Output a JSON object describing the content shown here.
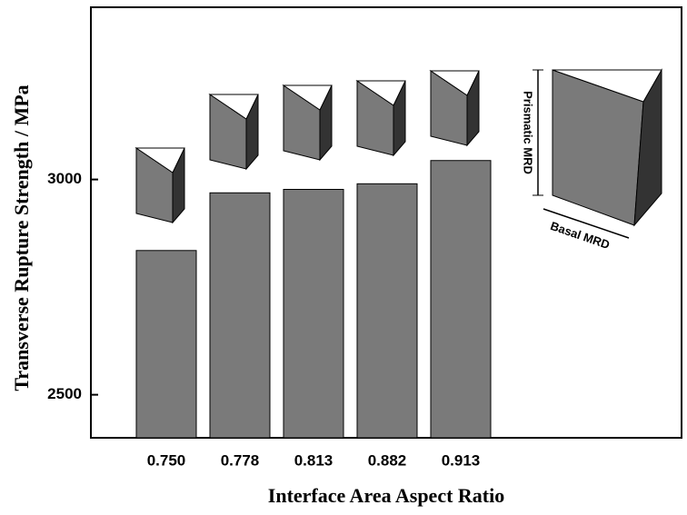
{
  "chart_data": {
    "type": "bar",
    "x_label": "Interface Area Aspect Ratio",
    "y_label": "Transverse Rupture Strength / MPa",
    "categories": [
      "0.750",
      "0.778",
      "0.813",
      "0.882",
      "0.913"
    ],
    "values": [
      2835,
      2969,
      2977,
      2990,
      3044
    ],
    "color": "#7a7a7a",
    "ylim": [
      2400,
      3400
    ],
    "yticks": [
      2500,
      3000
    ],
    "annotations": [
      "Prismatic MRD",
      "Basal MRD"
    ]
  }
}
